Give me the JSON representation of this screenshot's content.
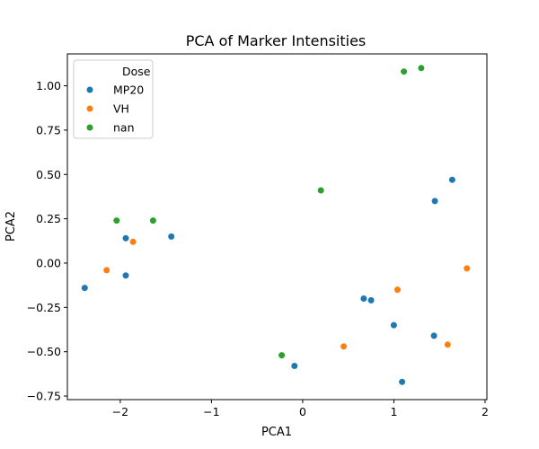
{
  "chart_data": {
    "type": "scatter",
    "title": "PCA of Marker Intensities",
    "xlabel": "PCA1",
    "ylabel": "PCA2",
    "xlim": [
      -2.58,
      2.02
    ],
    "ylim": [
      -0.77,
      1.18
    ],
    "xticks": [
      {
        "value": -2,
        "label": "−2"
      },
      {
        "value": -1,
        "label": "−1"
      },
      {
        "value": 0,
        "label": "0"
      },
      {
        "value": 1,
        "label": "1"
      },
      {
        "value": 2,
        "label": "2"
      }
    ],
    "yticks": [
      {
        "value": -0.75,
        "label": "−0.75"
      },
      {
        "value": -0.5,
        "label": "−0.50"
      },
      {
        "value": -0.25,
        "label": "−0.25"
      },
      {
        "value": 0.0,
        "label": "0.00"
      },
      {
        "value": 0.25,
        "label": "0.25"
      },
      {
        "value": 0.5,
        "label": "0.50"
      },
      {
        "value": 0.75,
        "label": "0.75"
      },
      {
        "value": 1.0,
        "label": "1.00"
      }
    ],
    "grid": false,
    "legend": {
      "title": "Dose",
      "placement": "top-left"
    },
    "series": [
      {
        "name": "MP20",
        "color": "#1f77b4",
        "points": [
          [
            -2.39,
            -0.14
          ],
          [
            -1.94,
            0.14
          ],
          [
            -1.94,
            -0.07
          ],
          [
            -1.44,
            0.15
          ],
          [
            -0.09,
            -0.58
          ],
          [
            0.67,
            -0.2
          ],
          [
            0.75,
            -0.21
          ],
          [
            1.0,
            -0.35
          ],
          [
            1.09,
            -0.67
          ],
          [
            1.44,
            -0.41
          ],
          [
            1.45,
            0.35
          ],
          [
            1.64,
            0.47
          ]
        ]
      },
      {
        "name": "VH",
        "color": "#ff7f0e",
        "points": [
          [
            -2.15,
            -0.04
          ],
          [
            -1.86,
            0.12
          ],
          [
            0.45,
            -0.47
          ],
          [
            1.04,
            -0.15
          ],
          [
            1.59,
            -0.46
          ],
          [
            1.8,
            -0.03
          ]
        ]
      },
      {
        "name": "nan",
        "color": "#2ca02c",
        "points": [
          [
            -2.04,
            0.24
          ],
          [
            -1.64,
            0.24
          ],
          [
            -0.23,
            -0.52
          ],
          [
            0.2,
            0.41
          ],
          [
            1.11,
            1.08
          ],
          [
            1.3,
            1.1
          ]
        ]
      }
    ]
  }
}
